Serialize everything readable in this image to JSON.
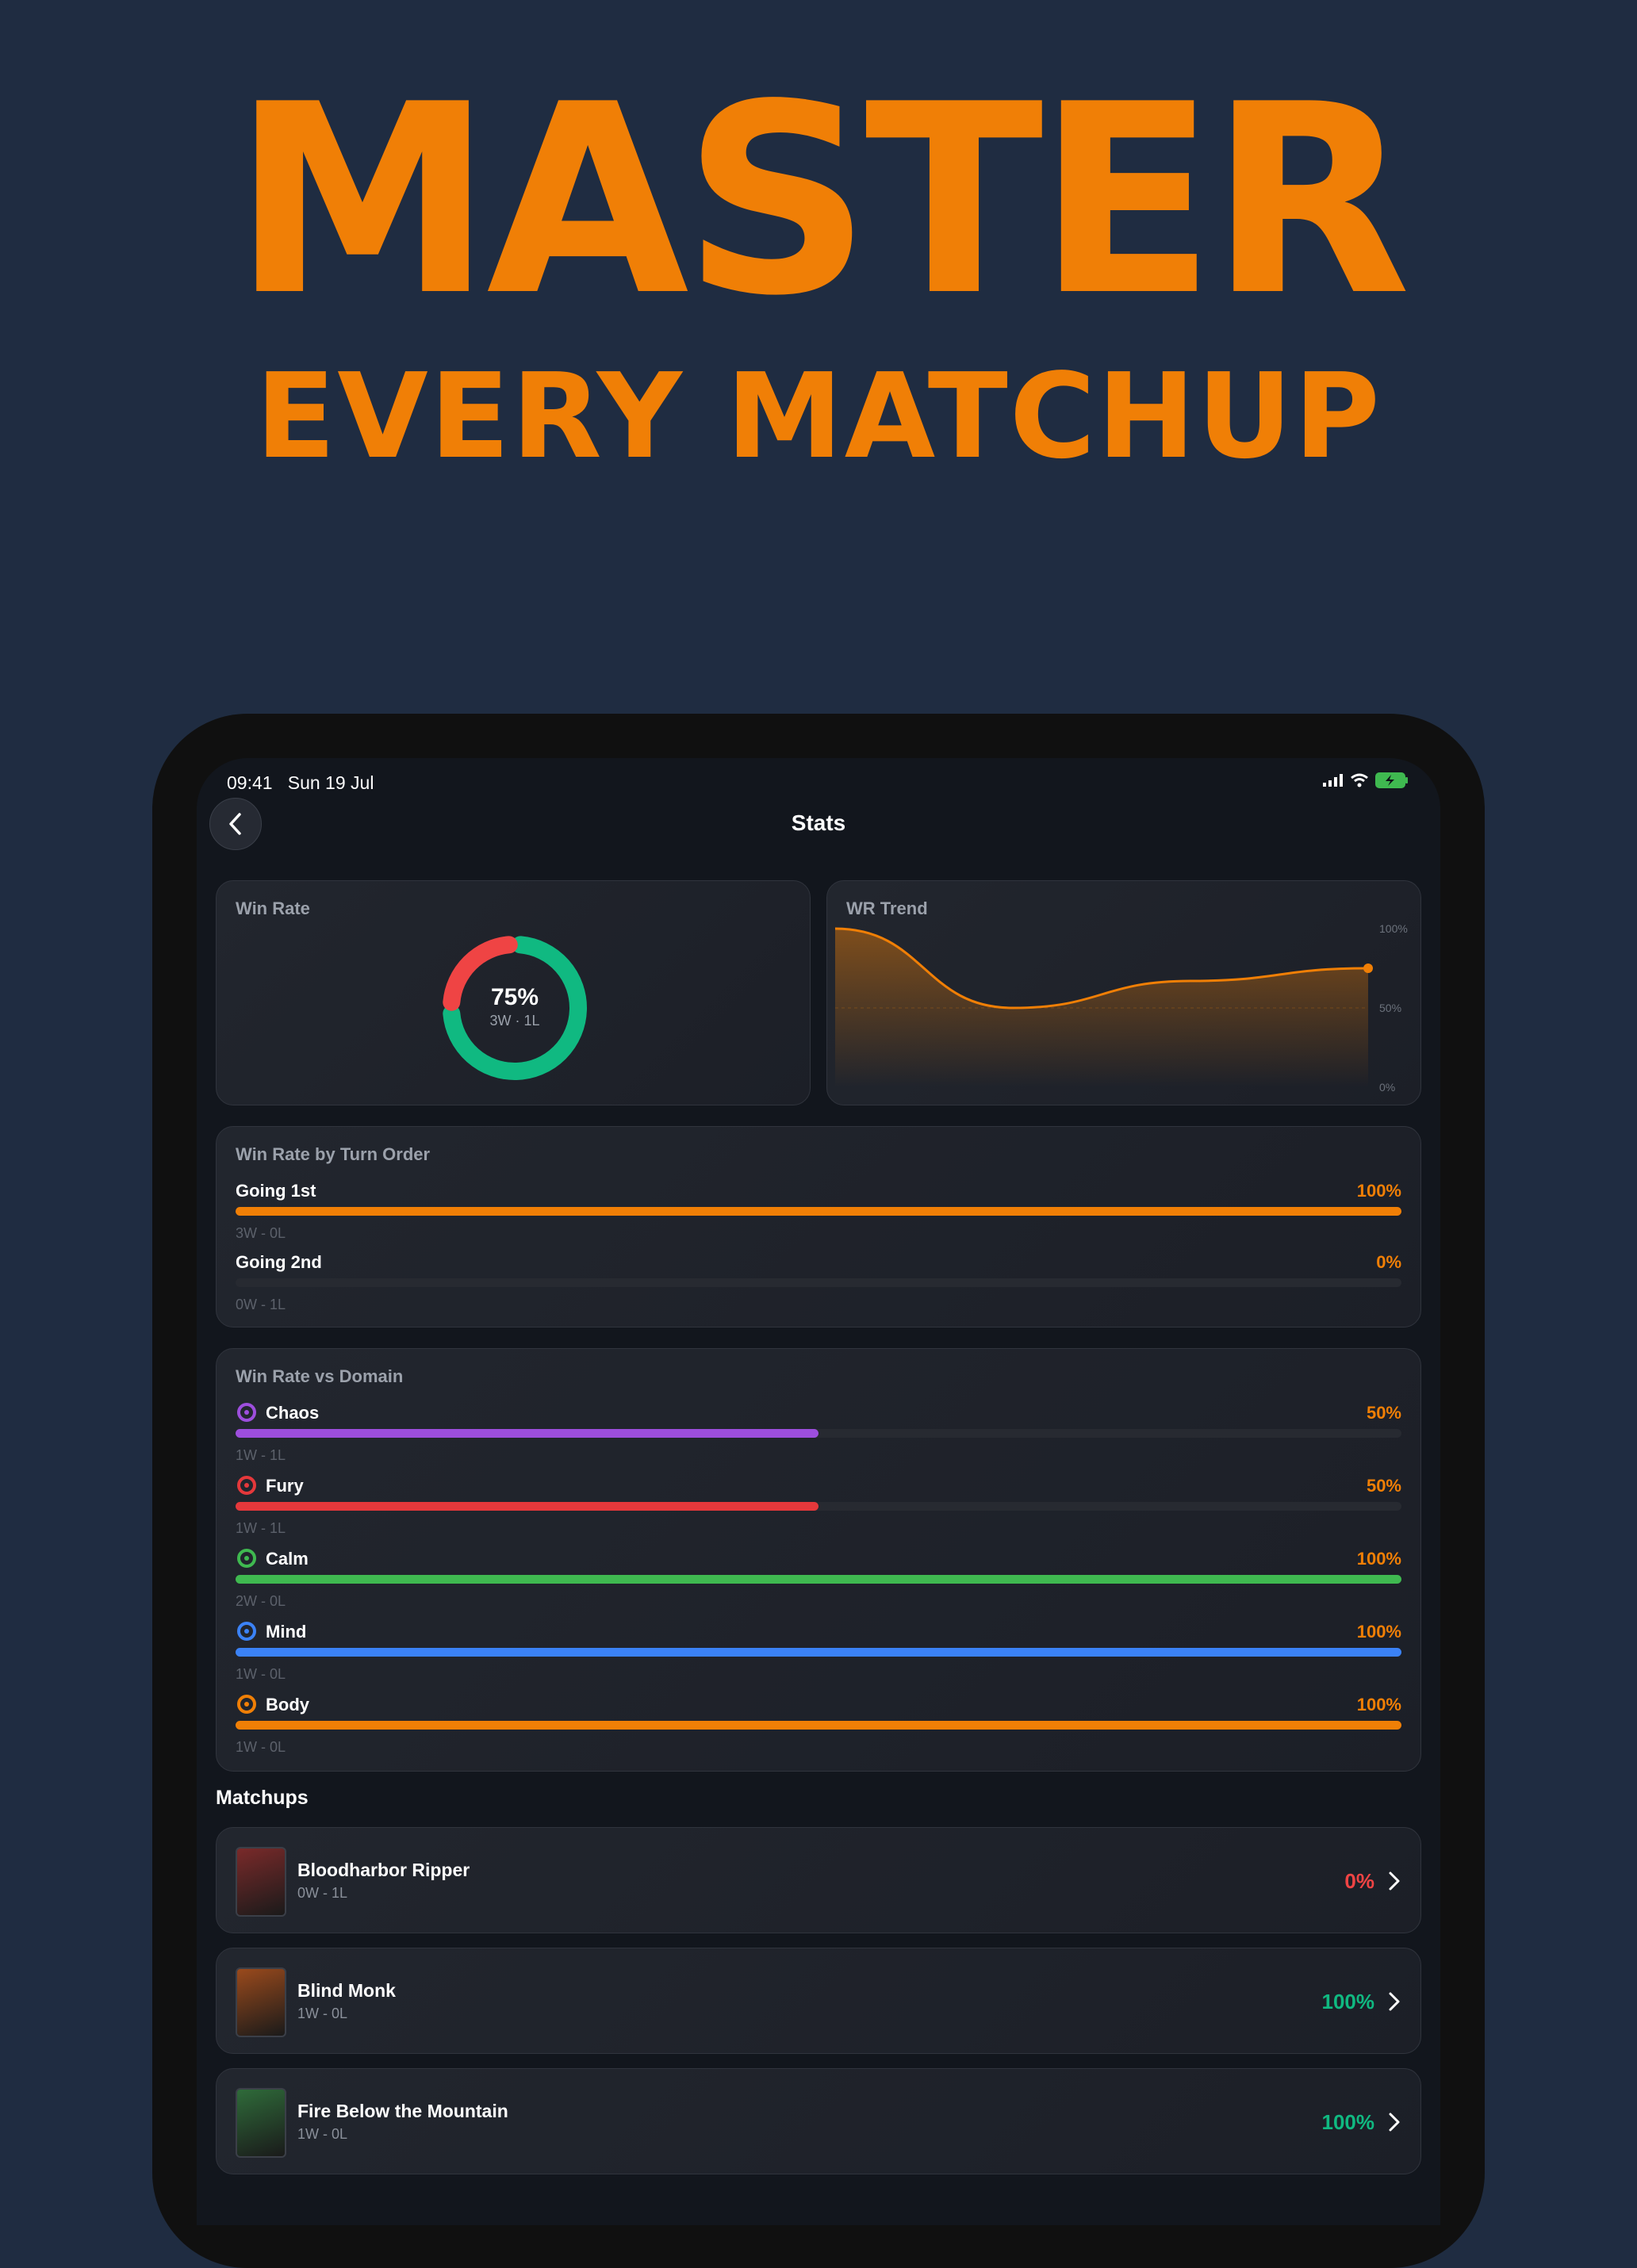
{
  "hero": {
    "title": "MASTER",
    "subtitle": "EVERY MATCHUP"
  },
  "status_bar": {
    "time": "09:41",
    "date": "Sun 19 Jul"
  },
  "nav": {
    "title": "Stats",
    "back_icon": "chevron-left-icon"
  },
  "win_rate": {
    "label": "Win Rate",
    "percent": "75%",
    "record": "3W · 1L",
    "wins": 3,
    "losses": 1,
    "colors": {
      "wins": "#10b981",
      "losses": "#ef4444"
    }
  },
  "wr_trend": {
    "label": "WR Trend",
    "chart_data": {
      "type": "area",
      "x": [
        1,
        2,
        3,
        4
      ],
      "y": [
        100,
        50,
        67,
        75
      ],
      "ylim": [
        0,
        100
      ],
      "y_ticks": [
        "100%",
        "50%",
        "0%"
      ],
      "color": "#f07f06"
    }
  },
  "turn_order": {
    "label": "Win Rate by Turn Order",
    "rows": [
      {
        "name": "Going 1st",
        "pct": "100%",
        "value": 100,
        "record": "3W - 0L",
        "color": "#f07f06"
      },
      {
        "name": "Going 2nd",
        "pct": "0%",
        "value": 0,
        "record": "0W - 1L",
        "color": "#f07f06"
      }
    ]
  },
  "domains": {
    "label": "Win Rate vs Domain",
    "rows": [
      {
        "name": "Chaos",
        "pct": "50%",
        "value": 50,
        "record": "1W - 1L",
        "color": "#9d4edd",
        "icon": "chaos-icon"
      },
      {
        "name": "Fury",
        "pct": "50%",
        "value": 50,
        "record": "1W - 1L",
        "color": "#e5383b",
        "icon": "fury-icon"
      },
      {
        "name": "Calm",
        "pct": "100%",
        "value": 100,
        "record": "2W - 0L",
        "color": "#3fb950",
        "icon": "calm-icon"
      },
      {
        "name": "Mind",
        "pct": "100%",
        "value": 100,
        "record": "1W - 0L",
        "color": "#3b82f6",
        "icon": "mind-icon"
      },
      {
        "name": "Body",
        "pct": "100%",
        "value": 100,
        "record": "1W - 0L",
        "color": "#f07f06",
        "icon": "body-icon"
      }
    ]
  },
  "matchups": {
    "title": "Matchups",
    "items": [
      {
        "name": "Bloodharbor Ripper",
        "record": "0W - 1L",
        "pct": "0%",
        "pct_color": "#ef4444",
        "thumb_color": "#7a2a2a"
      },
      {
        "name": "Blind Monk",
        "record": "1W - 0L",
        "pct": "100%",
        "pct_color": "#10b981",
        "thumb_color": "#9a4a1c"
      },
      {
        "name": "Fire Below the Mountain",
        "record": "1W - 0L",
        "pct": "100%",
        "pct_color": "#10b981",
        "thumb_color": "#2f6b3a"
      }
    ]
  }
}
